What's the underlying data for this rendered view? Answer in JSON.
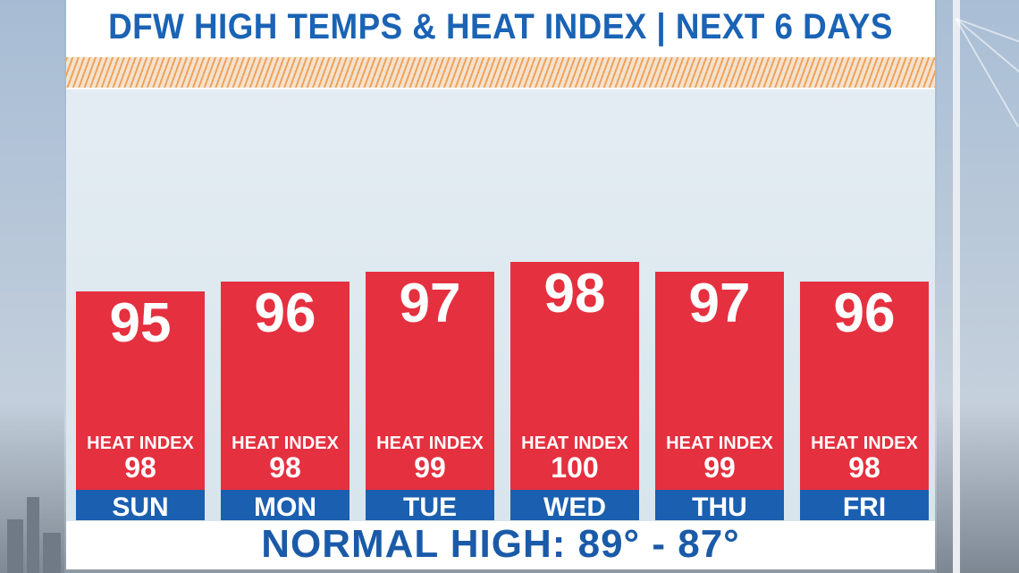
{
  "title": "DFW HIGH TEMPS & HEAT INDEX | NEXT 6 DAYS",
  "heat_index_label": "HEAT INDEX",
  "normal_high": "NORMAL HIGH: 89° - 87°",
  "colors": {
    "bar": "#e5303f",
    "day_band": "#1b5fb0",
    "title": "#1a63b5",
    "stripe": "#f0a35a"
  },
  "chart_data": {
    "type": "bar",
    "categories": [
      "SUN",
      "MON",
      "TUE",
      "WED",
      "THU",
      "FRI"
    ],
    "series": [
      {
        "values": [
          95,
          96,
          97,
          98,
          97,
          96
        ]
      }
    ],
    "heat_index": [
      98,
      98,
      99,
      100,
      99,
      98
    ],
    "title": "DFW HIGH TEMPS & HEAT INDEX | NEXT 6 DAYS",
    "xlabel": "",
    "ylabel": "",
    "grid": false
  }
}
